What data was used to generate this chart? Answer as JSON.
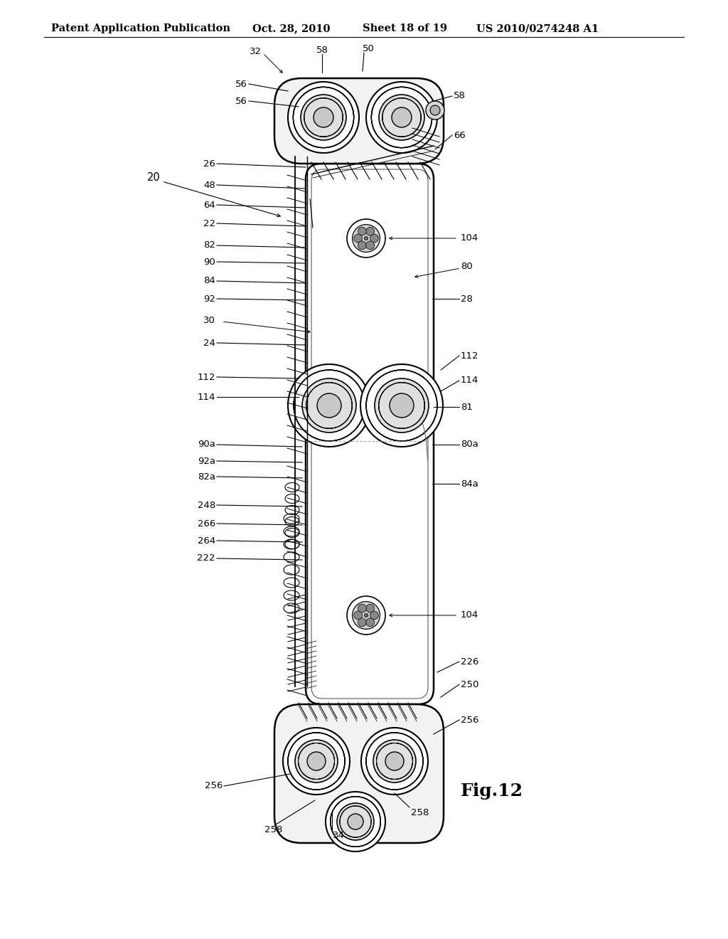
{
  "title": "Patent Application Publication",
  "date": "Oct. 28, 2010",
  "sheet": "Sheet 18 of 19",
  "patent_num": "US 2010/0274248 A1",
  "fig_label": "Fig.12",
  "bg_color": "#ffffff",
  "line_color": "#000000",
  "header_fontsize": 10.5,
  "label_fontsize": 9.5,
  "fig_label_fontsize": 18
}
